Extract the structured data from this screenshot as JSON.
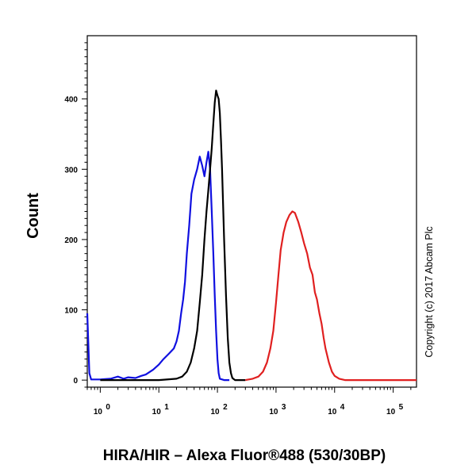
{
  "chart_data": {
    "type": "line",
    "xlabel": "HIRA/HIR – Alexa Fluor®488 (530/30BP)",
    "ylabel": "Count",
    "annotation": "Copyright (c) 2017 Abcam Plc",
    "x_scale": "log",
    "xlim": [
      0.6,
      250000
    ],
    "ylim": [
      -10,
      490
    ],
    "x_ticks": [
      {
        "value": 1,
        "base": "10",
        "exp": "0"
      },
      {
        "value": 10,
        "base": "10",
        "exp": "1"
      },
      {
        "value": 100,
        "base": "10",
        "exp": "2"
      },
      {
        "value": 1000,
        "base": "10",
        "exp": "3"
      },
      {
        "value": 10000,
        "base": "10",
        "exp": "4"
      },
      {
        "value": 100000,
        "base": "10",
        "exp": "5"
      }
    ],
    "y_ticks": [
      0,
      100,
      200,
      300,
      400
    ],
    "grid": false,
    "series": [
      {
        "color": "#1010e0",
        "points": [
          [
            0.6,
            95
          ],
          [
            0.62,
            60
          ],
          [
            0.65,
            10
          ],
          [
            0.7,
            1
          ],
          [
            1,
            1
          ],
          [
            1.5,
            2
          ],
          [
            2,
            5
          ],
          [
            2.5,
            2
          ],
          [
            3,
            4
          ],
          [
            4,
            3
          ],
          [
            5,
            6
          ],
          [
            6,
            8
          ],
          [
            8,
            15
          ],
          [
            10,
            22
          ],
          [
            12,
            30
          ],
          [
            15,
            38
          ],
          [
            18,
            45
          ],
          [
            20,
            55
          ],
          [
            22,
            70
          ],
          [
            24,
            95
          ],
          [
            26,
            115
          ],
          [
            28,
            140
          ],
          [
            30,
            180
          ],
          [
            33,
            220
          ],
          [
            36,
            265
          ],
          [
            40,
            285
          ],
          [
            45,
            300
          ],
          [
            50,
            318
          ],
          [
            55,
            305
          ],
          [
            60,
            290
          ],
          [
            65,
            310
          ],
          [
            70,
            325
          ],
          [
            75,
            300
          ],
          [
            80,
            240
          ],
          [
            85,
            180
          ],
          [
            90,
            120
          ],
          [
            95,
            70
          ],
          [
            100,
            30
          ],
          [
            105,
            10
          ],
          [
            110,
            2
          ],
          [
            130,
            0
          ],
          [
            160,
            0
          ]
        ]
      },
      {
        "color": "#000000",
        "points": [
          [
            1,
            0
          ],
          [
            10,
            0
          ],
          [
            20,
            2
          ],
          [
            25,
            5
          ],
          [
            30,
            12
          ],
          [
            35,
            25
          ],
          [
            40,
            45
          ],
          [
            45,
            70
          ],
          [
            50,
            110
          ],
          [
            55,
            150
          ],
          [
            60,
            200
          ],
          [
            65,
            240
          ],
          [
            70,
            270
          ],
          [
            75,
            300
          ],
          [
            80,
            330
          ],
          [
            85,
            365
          ],
          [
            90,
            395
          ],
          [
            95,
            412
          ],
          [
            100,
            405
          ],
          [
            105,
            400
          ],
          [
            110,
            380
          ],
          [
            115,
            340
          ],
          [
            120,
            300
          ],
          [
            130,
            200
          ],
          [
            140,
            120
          ],
          [
            150,
            60
          ],
          [
            160,
            25
          ],
          [
            170,
            10
          ],
          [
            180,
            3
          ],
          [
            200,
            0
          ],
          [
            300,
            0
          ]
        ]
      },
      {
        "color": "#e02020",
        "points": [
          [
            300,
            0
          ],
          [
            400,
            2
          ],
          [
            500,
            5
          ],
          [
            600,
            12
          ],
          [
            700,
            25
          ],
          [
            800,
            45
          ],
          [
            900,
            70
          ],
          [
            1000,
            110
          ],
          [
            1100,
            150
          ],
          [
            1200,
            185
          ],
          [
            1350,
            210
          ],
          [
            1500,
            225
          ],
          [
            1700,
            235
          ],
          [
            1900,
            240
          ],
          [
            2100,
            238
          ],
          [
            2400,
            225
          ],
          [
            2700,
            210
          ],
          [
            3000,
            195
          ],
          [
            3400,
            180
          ],
          [
            3800,
            160
          ],
          [
            4200,
            150
          ],
          [
            4600,
            125
          ],
          [
            5000,
            115
          ],
          [
            5500,
            95
          ],
          [
            6000,
            80
          ],
          [
            6500,
            60
          ],
          [
            7000,
            45
          ],
          [
            8000,
            25
          ],
          [
            9000,
            12
          ],
          [
            10000,
            6
          ],
          [
            12000,
            2
          ],
          [
            15000,
            0
          ],
          [
            250000,
            0
          ]
        ]
      }
    ]
  }
}
